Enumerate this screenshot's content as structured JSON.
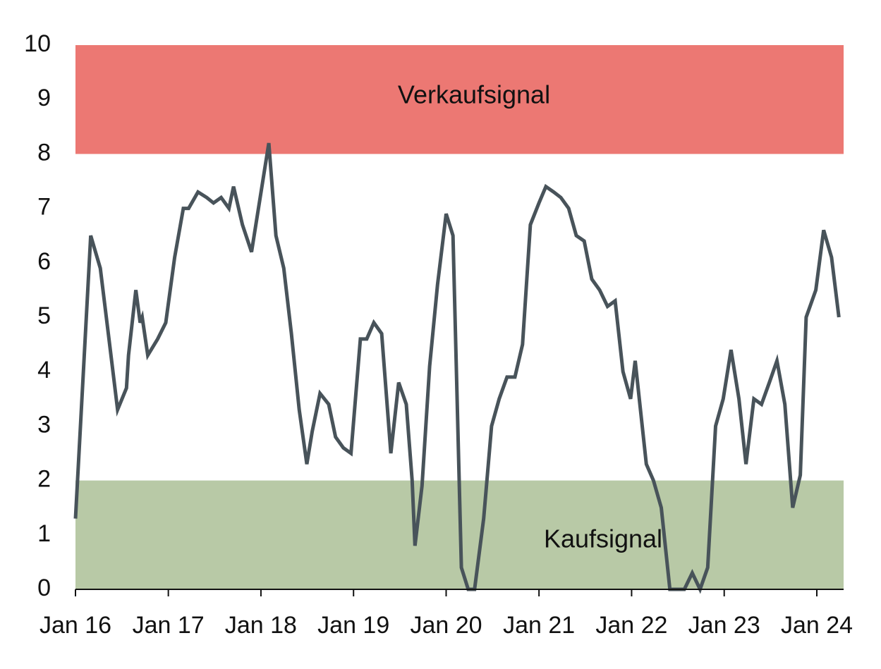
{
  "chart_data": {
    "type": "line",
    "title": "",
    "xlabel": "",
    "ylabel": "",
    "ylim": [
      0,
      10
    ],
    "yticks": [
      0,
      1,
      2,
      3,
      4,
      5,
      6,
      7,
      8,
      9,
      10
    ],
    "xlim": [
      "2016-01",
      "2024-04"
    ],
    "xtick_labels": [
      {
        "date": "2016-01",
        "label": "Jan 16"
      },
      {
        "date": "2017-01",
        "label": "Jan 17"
      },
      {
        "date": "2018-01",
        "label": "Jan 18"
      },
      {
        "date": "2019-01",
        "label": "Jan 19"
      },
      {
        "date": "2020-01",
        "label": "Jan 20"
      },
      {
        "date": "2021-01",
        "label": "Jan 21"
      },
      {
        "date": "2022-01",
        "label": "Jan 22"
      },
      {
        "date": "2023-01",
        "label": "Jan 23"
      },
      {
        "date": "2024-01",
        "label": "Jan 24"
      }
    ],
    "grid": false,
    "bands": [
      {
        "label": "Verkaufsignal",
        "from": 8,
        "to": 10,
        "color": "#ec7873"
      },
      {
        "label": "Kaufsignal",
        "from": 0,
        "to": 2,
        "color": "#b8c9a6"
      }
    ],
    "line_color": "#48535a",
    "series": [
      {
        "name": "",
        "points": [
          [
            "2016-01-01",
            1.3
          ],
          [
            "2016-01-08",
            1.9
          ],
          [
            "2016-03-01",
            6.5
          ],
          [
            "2016-04-08",
            5.9
          ],
          [
            "2016-05-12",
            4.6
          ],
          [
            "2016-06-15",
            3.3
          ],
          [
            "2016-07-20",
            3.7
          ],
          [
            "2016-07-28",
            4.3
          ],
          [
            "2016-08-26",
            5.5
          ],
          [
            "2016-09-12",
            4.9
          ],
          [
            "2016-09-20",
            5.0
          ],
          [
            "2016-10-12",
            4.3
          ],
          [
            "2016-11-20",
            4.6
          ],
          [
            "2016-12-22",
            4.9
          ],
          [
            "2017-01-26",
            6.1
          ],
          [
            "2017-03-01",
            7.0
          ],
          [
            "2017-03-22",
            7.0
          ],
          [
            "2017-04-28",
            7.3
          ],
          [
            "2017-06-01",
            7.2
          ],
          [
            "2017-06-28",
            7.1
          ],
          [
            "2017-07-28",
            7.2
          ],
          [
            "2017-08-28",
            7.0
          ],
          [
            "2017-09-15",
            7.4
          ],
          [
            "2017-10-20",
            6.7
          ],
          [
            "2017-11-25",
            6.2
          ],
          [
            "2018-02-01",
            8.2
          ],
          [
            "2018-03-01",
            6.5
          ],
          [
            "2018-04-01",
            5.9
          ],
          [
            "2018-05-01",
            4.7
          ],
          [
            "2018-06-01",
            3.3
          ],
          [
            "2018-07-01",
            2.3
          ],
          [
            "2018-07-22",
            2.9
          ],
          [
            "2018-08-22",
            3.6
          ],
          [
            "2018-09-25",
            3.4
          ],
          [
            "2018-10-22",
            2.8
          ],
          [
            "2018-11-22",
            2.6
          ],
          [
            "2018-12-22",
            2.5
          ],
          [
            "2019-01-28",
            4.6
          ],
          [
            "2019-02-22",
            4.6
          ],
          [
            "2019-03-22",
            4.9
          ],
          [
            "2019-04-22",
            4.7
          ],
          [
            "2019-05-28",
            2.5
          ],
          [
            "2019-06-28",
            3.8
          ],
          [
            "2019-07-28",
            3.4
          ],
          [
            "2019-08-20",
            2.0
          ],
          [
            "2019-08-31",
            0.8
          ],
          [
            "2019-09-28",
            1.9
          ],
          [
            "2019-10-28",
            4.1
          ],
          [
            "2019-11-28",
            5.6
          ],
          [
            "2020-01-01",
            6.9
          ],
          [
            "2020-01-28",
            6.5
          ],
          [
            "2020-03-01",
            0.4
          ],
          [
            "2020-03-28",
            0.0
          ],
          [
            "2020-04-22",
            0.0
          ],
          [
            "2020-05-28",
            1.3
          ],
          [
            "2020-06-28",
            3.0
          ],
          [
            "2020-07-28",
            3.5
          ],
          [
            "2020-08-28",
            3.9
          ],
          [
            "2020-09-28",
            3.9
          ],
          [
            "2020-10-28",
            4.5
          ],
          [
            "2020-11-28",
            6.7
          ],
          [
            "2021-01-01",
            7.1
          ],
          [
            "2021-01-28",
            7.4
          ],
          [
            "2021-02-28",
            7.3
          ],
          [
            "2021-03-28",
            7.2
          ],
          [
            "2021-04-28",
            7.0
          ],
          [
            "2021-05-28",
            6.5
          ],
          [
            "2021-06-28",
            6.4
          ],
          [
            "2021-07-28",
            5.7
          ],
          [
            "2021-08-28",
            5.5
          ],
          [
            "2021-09-28",
            5.2
          ],
          [
            "2021-10-28",
            5.3
          ],
          [
            "2021-11-28",
            4.0
          ],
          [
            "2021-12-28",
            3.5
          ],
          [
            "2022-01-15",
            4.2
          ],
          [
            "2022-02-28",
            2.3
          ],
          [
            "2022-03-28",
            2.0
          ],
          [
            "2022-04-28",
            1.5
          ],
          [
            "2022-06-01",
            0.0
          ],
          [
            "2022-06-28",
            0.0
          ],
          [
            "2022-07-28",
            0.0
          ],
          [
            "2022-08-28",
            0.3
          ],
          [
            "2022-09-28",
            0.0
          ],
          [
            "2022-10-28",
            0.4
          ],
          [
            "2022-11-28",
            3.0
          ],
          [
            "2022-12-28",
            3.5
          ],
          [
            "2023-01-28",
            4.4
          ],
          [
            "2023-02-28",
            3.5
          ],
          [
            "2023-03-28",
            2.3
          ],
          [
            "2023-04-28",
            3.5
          ],
          [
            "2023-05-28",
            3.4
          ],
          [
            "2023-06-28",
            3.8
          ],
          [
            "2023-07-28",
            4.2
          ],
          [
            "2023-08-28",
            3.4
          ],
          [
            "2023-09-28",
            1.5
          ],
          [
            "2023-10-28",
            2.1
          ],
          [
            "2023-11-20",
            5.0
          ],
          [
            "2023-12-28",
            5.5
          ],
          [
            "2024-01-28",
            6.6
          ],
          [
            "2024-02-28",
            6.1
          ],
          [
            "2024-03-28",
            5.0
          ]
        ]
      }
    ]
  }
}
